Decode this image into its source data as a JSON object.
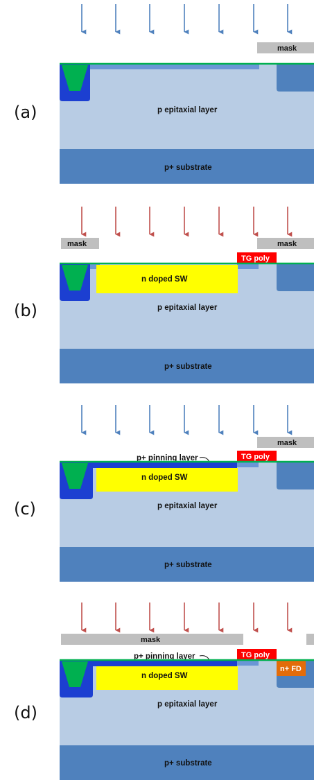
{
  "colors": {
    "epi": "#B8CCE4",
    "substrate": "#4F81BD",
    "sti_fill": "#1C3FD1",
    "sti_oxide": "#00B050",
    "surface_line": "#00B050",
    "mask": "#BFBFBF",
    "implant_blue": "#4F81BD",
    "implant_red": "#C0504D",
    "n_sw": "#FFFF00",
    "tg_poly": "#FF0000",
    "pinning": "#1C3FD1",
    "shallow_implant": "#6A96D6",
    "right_well": "#4F81BD",
    "n_fd": "#E36C0A"
  },
  "panels": [
    {
      "label": "(a)",
      "implant_color": "implant_blue",
      "masks": [
        "mask"
      ],
      "layers": {
        "epi": "p epitaxial layer",
        "substrate": "p+ substrate"
      }
    },
    {
      "label": "(b)",
      "implant_color": "implant_red",
      "masks": [
        "mask",
        "mask"
      ],
      "tg_poly": "TG poly",
      "layers": {
        "sw": "n doped SW",
        "epi": "p epitaxial layer",
        "substrate": "p+ substrate"
      }
    },
    {
      "label": "(c)",
      "implant_color": "implant_blue",
      "masks": [
        "mask"
      ],
      "tg_poly": "TG poly",
      "layers": {
        "pinning": "p+ pinning layer",
        "sw": "n doped SW",
        "epi": "p epitaxial layer",
        "substrate": "p+ substrate"
      }
    },
    {
      "label": "(d)",
      "implant_color": "implant_red",
      "masks": [
        "mask"
      ],
      "tg_poly": "TG poly",
      "layers": {
        "pinning": "p+ pinning layer",
        "sw": "n doped SW",
        "fd": "n+ FD",
        "epi": "p epitaxial layer",
        "substrate": "p+ substrate"
      }
    }
  ]
}
